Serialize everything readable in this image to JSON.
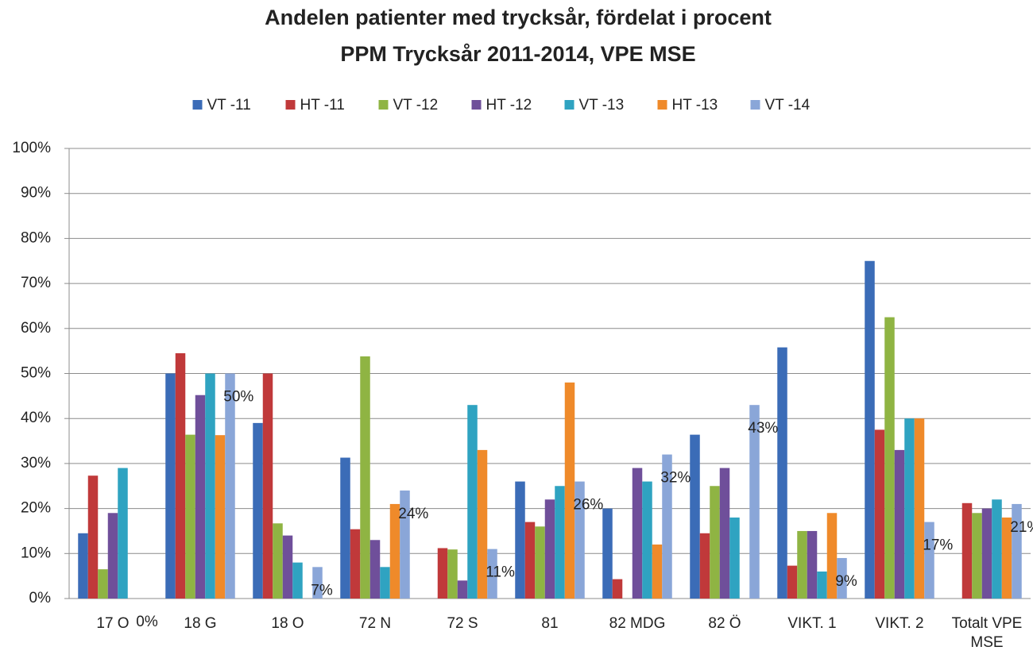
{
  "chart_data": {
    "type": "bar",
    "title": "Andelen patienter med trycksår, fördelat i procent",
    "subtitle": "PPM Trycksår 2011-2014, VPE MSE",
    "categories": [
      "17 O",
      "18 G",
      "18 O",
      "72 N",
      "72 S",
      "81",
      "82 MDG",
      "82 Ö",
      "VIKT. 1",
      "VIKT. 2",
      "Totalt VPE MSE"
    ],
    "series": [
      {
        "name": "VT -11",
        "color": "#3b6cb7",
        "values": [
          14.5,
          50,
          39,
          31.3,
          0,
          26,
          20,
          36.4,
          55.8,
          75,
          0
        ]
      },
      {
        "name": "HT -11",
        "color": "#c0393a",
        "values": [
          27.3,
          54.5,
          50,
          15.4,
          11.2,
          17,
          4.3,
          14.5,
          7.3,
          37.5,
          21.2
        ]
      },
      {
        "name": "VT -12",
        "color": "#8fb443",
        "values": [
          6.5,
          36.4,
          16.7,
          53.8,
          10.9,
          16,
          0,
          25,
          15,
          62.5,
          19
        ]
      },
      {
        "name": "HT -12",
        "color": "#6f4f9a",
        "values": [
          19,
          45.2,
          14,
          13,
          4,
          22,
          29,
          29,
          15,
          33,
          20
        ]
      },
      {
        "name": "VT -13",
        "color": "#2fa3c1",
        "values": [
          29,
          50,
          8,
          7,
          43,
          25,
          26,
          18,
          6,
          40,
          22
        ]
      },
      {
        "name": "HT -13",
        "color": "#ef8a2a",
        "values": [
          0,
          36.3,
          0,
          21,
          33,
          48,
          12,
          0,
          19,
          40,
          18
        ]
      },
      {
        "name": "VT -14",
        "color": "#8aa6d8",
        "values": [
          0,
          50,
          7,
          24,
          11,
          26,
          32,
          43,
          9,
          17,
          21
        ],
        "value_labels": [
          "0%",
          "50%",
          "7%",
          "24%",
          "11%",
          "26%",
          "32%",
          "43%",
          "9%",
          "17%",
          "21%"
        ]
      }
    ],
    "ylim": [
      0,
      100
    ],
    "yticks": [
      {
        "value": 0,
        "label": "0%"
      },
      {
        "value": 10,
        "label": "10%"
      },
      {
        "value": 20,
        "label": "20%"
      },
      {
        "value": 30,
        "label": "30%"
      },
      {
        "value": 40,
        "label": "40%"
      },
      {
        "value": 50,
        "label": "50%"
      },
      {
        "value": 60,
        "label": "60%"
      },
      {
        "value": 70,
        "label": "70%"
      },
      {
        "value": 80,
        "label": "80%"
      },
      {
        "value": 90,
        "label": "90%"
      },
      {
        "value": 100,
        "label": "100%"
      }
    ],
    "grid": true,
    "legend": "top"
  }
}
